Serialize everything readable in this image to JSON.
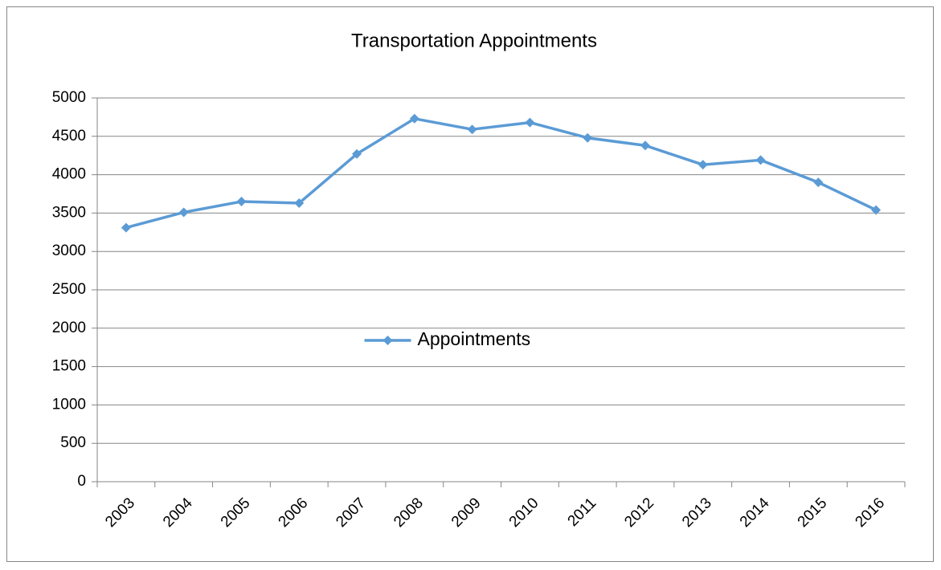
{
  "chart_data": {
    "type": "line",
    "title": "Transportation Appointments",
    "categories": [
      "2003",
      "2004",
      "2005",
      "2006",
      "2007",
      "2008",
      "2009",
      "2010",
      "2011",
      "2012",
      "2013",
      "2014",
      "2015",
      "2016"
    ],
    "series": [
      {
        "name": "Appointments",
        "color": "#5b9bd5",
        "values": [
          3310,
          3510,
          3650,
          3630,
          4270,
          4730,
          4590,
          4680,
          4480,
          4380,
          4130,
          4190,
          3900,
          3540
        ]
      }
    ],
    "ylim": [
      0,
      5000
    ],
    "yticks": [
      0,
      500,
      1000,
      1500,
      2000,
      2500,
      3000,
      3500,
      4000,
      4500,
      5000
    ],
    "grid": true,
    "legend_position": "center"
  }
}
